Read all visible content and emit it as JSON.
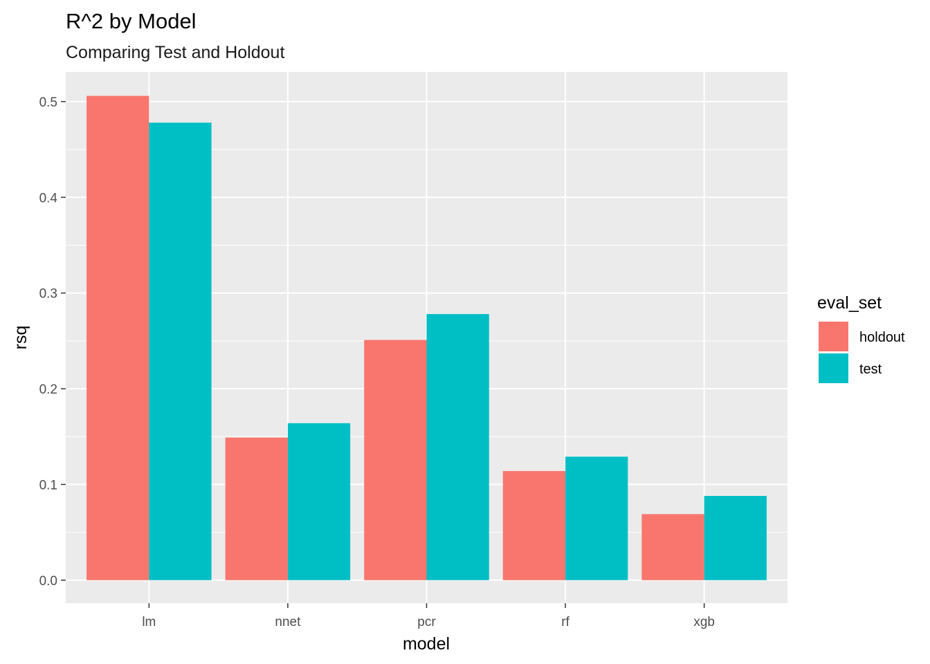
{
  "chart_data": {
    "type": "bar",
    "title": "R^2 by Model",
    "subtitle": "Comparing Test and Holdout",
    "xlabel": "model",
    "ylabel": "rsq",
    "categories": [
      "lm",
      "nnet",
      "pcr",
      "rf",
      "xgb"
    ],
    "series": [
      {
        "name": "holdout",
        "color": "#F8766D",
        "values": [
          0.506,
          0.149,
          0.251,
          0.114,
          0.069
        ]
      },
      {
        "name": "test",
        "color": "#00BFC4",
        "values": [
          0.478,
          0.164,
          0.278,
          0.129,
          0.088
        ]
      }
    ],
    "ylim": [
      -0.024,
      0.531
    ],
    "yticks": [
      0.0,
      0.1,
      0.2,
      0.3,
      0.4,
      0.5
    ],
    "ytick_labels": [
      "0.0",
      "0.1",
      "0.2",
      "0.3",
      "0.4",
      "0.5"
    ],
    "grid": true,
    "panel_background": "#EBEBEB",
    "legend": {
      "title": "eval_set",
      "position": "right"
    }
  }
}
